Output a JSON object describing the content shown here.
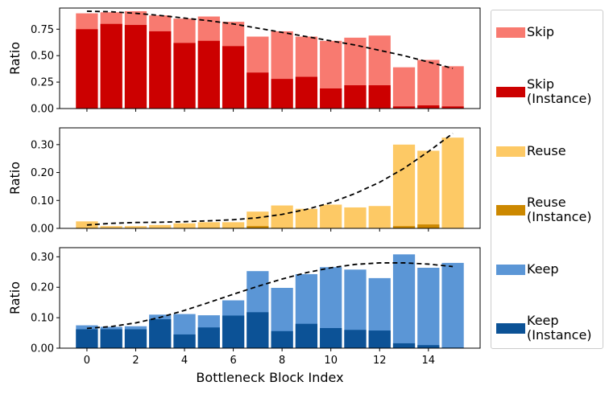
{
  "chart_data": [
    {
      "type": "bar",
      "panel": "top",
      "xlabel": "",
      "ylabel": "Ratio",
      "ylim": [
        0,
        0.95
      ],
      "yticks": [
        "0.00",
        "0.25",
        "0.50",
        "0.75"
      ],
      "x": [
        0,
        1,
        2,
        3,
        4,
        5,
        6,
        7,
        8,
        9,
        10,
        11,
        12,
        13,
        14,
        15
      ],
      "series": [
        {
          "name": "Skip",
          "color": "#f87a70",
          "values": [
            0.9,
            0.91,
            0.92,
            0.88,
            0.85,
            0.87,
            0.82,
            0.68,
            0.73,
            0.68,
            0.64,
            0.67,
            0.69,
            0.39,
            0.46,
            0.4
          ]
        },
        {
          "name": "Skip\n(Instance)",
          "color": "#cc0000",
          "values": [
            0.75,
            0.8,
            0.79,
            0.73,
            0.62,
            0.64,
            0.59,
            0.34,
            0.28,
            0.3,
            0.19,
            0.22,
            0.22,
            0.02,
            0.03,
            0.02
          ]
        }
      ],
      "trend": {
        "style": "dashed",
        "x": [
          0,
          1,
          2,
          3,
          4,
          5,
          6,
          7,
          8,
          9,
          10,
          11,
          12,
          13,
          14,
          15
        ],
        "y": [
          0.92,
          0.915,
          0.9,
          0.88,
          0.855,
          0.83,
          0.8,
          0.76,
          0.72,
          0.68,
          0.64,
          0.6,
          0.55,
          0.5,
          0.44,
          0.38
        ]
      }
    },
    {
      "type": "bar",
      "panel": "middle",
      "xlabel": "",
      "ylabel": "Ratio",
      "ylim": [
        0,
        0.36
      ],
      "yticks": [
        "0.00",
        "0.10",
        "0.20",
        "0.30"
      ],
      "x": [
        0,
        1,
        2,
        3,
        4,
        5,
        6,
        7,
        8,
        9,
        10,
        11,
        12,
        13,
        14,
        15
      ],
      "series": [
        {
          "name": "Reuse",
          "color": "#fdc965",
          "values": [
            0.025,
            0.008,
            0.008,
            0.012,
            0.018,
            0.022,
            0.022,
            0.06,
            0.082,
            0.07,
            0.085,
            0.075,
            0.08,
            0.3,
            0.278,
            0.325
          ]
        },
        {
          "name": "Reuse\n(Instance)",
          "color": "#cc8800",
          "values": [
            0.002,
            0.001,
            0.001,
            0.001,
            0.001,
            0.002,
            0.002,
            0.008,
            0.002,
            0.001,
            0.001,
            0.001,
            0.001,
            0.008,
            0.014,
            0.001
          ]
        }
      ],
      "trend": {
        "style": "dashed",
        "x": [
          0,
          1,
          2,
          3,
          4,
          5,
          6,
          7,
          8,
          9,
          10,
          11,
          12,
          13,
          14,
          15
        ],
        "y": [
          0.012,
          0.018,
          0.021,
          0.022,
          0.024,
          0.027,
          0.031,
          0.038,
          0.05,
          0.068,
          0.092,
          0.125,
          0.165,
          0.215,
          0.275,
          0.34
        ]
      }
    },
    {
      "type": "bar",
      "panel": "bottom",
      "xlabel": "Bottleneck Block Index",
      "ylabel": "Ratio",
      "ylim": [
        0,
        0.33
      ],
      "yticks": [
        "0.00",
        "0.10",
        "0.20",
        "0.30"
      ],
      "xticks": [
        "0",
        "2",
        "4",
        "6",
        "8",
        "10",
        "12",
        "14"
      ],
      "x": [
        0,
        1,
        2,
        3,
        4,
        5,
        6,
        7,
        8,
        9,
        10,
        11,
        12,
        13,
        14,
        15
      ],
      "series": [
        {
          "name": "Keep",
          "color": "#5b96d6",
          "values": [
            0.075,
            0.07,
            0.072,
            0.11,
            0.112,
            0.108,
            0.157,
            0.253,
            0.198,
            0.243,
            0.266,
            0.258,
            0.23,
            0.308,
            0.264,
            0.28
          ]
        },
        {
          "name": "Keep\n(Instance)",
          "color": "#0c5296",
          "values": [
            0.062,
            0.062,
            0.062,
            0.095,
            0.045,
            0.068,
            0.107,
            0.118,
            0.056,
            0.08,
            0.066,
            0.06,
            0.058,
            0.016,
            0.01,
            0.002
          ]
        }
      ],
      "trend": {
        "style": "dashed",
        "x": [
          0,
          1,
          2,
          3,
          4,
          5,
          6,
          7,
          8,
          9,
          10,
          11,
          12,
          13,
          14,
          15
        ],
        "y": [
          0.065,
          0.071,
          0.083,
          0.101,
          0.124,
          0.15,
          0.177,
          0.203,
          0.227,
          0.248,
          0.264,
          0.275,
          0.28,
          0.28,
          0.276,
          0.268
        ]
      }
    }
  ],
  "legend": {
    "placement": "right",
    "items": [
      {
        "label": "Skip",
        "color": "#f87a70"
      },
      {
        "label": "Skip\n(Instance)",
        "color": "#cc0000"
      },
      {
        "label": "Reuse",
        "color": "#fdc965"
      },
      {
        "label": "Reuse\n(Instance)",
        "color": "#cc8800"
      },
      {
        "label": "Keep",
        "color": "#5b96d6"
      },
      {
        "label": "Keep\n(Instance)",
        "color": "#0c5296"
      }
    ]
  }
}
